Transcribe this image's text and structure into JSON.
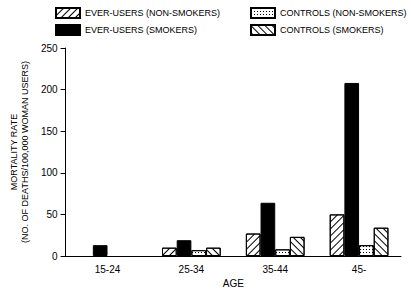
{
  "chart_data": {
    "type": "bar",
    "x_label": "AGE",
    "y_label": "MORTALITY RATE\n(NO. OF DEATHS/100,000 WOMAN USERS)",
    "categories": [
      "15-24",
      "25-34",
      "35-44",
      "45-"
    ],
    "series": [
      {
        "name": "EVER-USERS (NON-SMOKERS)",
        "color": "#ffffff",
        "marker": "hatch_right",
        "values": [
          null,
          10,
          27,
          50
        ]
      },
      {
        "name": "EVER-USERS (SMOKERS)",
        "color": "#000000",
        "marker": "solid",
        "values": [
          13,
          19,
          64,
          208
        ]
      },
      {
        "name": "CONTROLS (NON-SMOKERS)",
        "color": "#ffffff",
        "marker": "dotted",
        "values": [
          null,
          7,
          8,
          13
        ]
      },
      {
        "name": "CONTROLS (SMOKERS)",
        "color": "#ffffff",
        "marker": "hatch_left",
        "values": [
          null,
          10,
          23,
          34
        ]
      }
    ],
    "ylim": [
      0,
      250
    ],
    "yticks": [
      0,
      50,
      100,
      150,
      200,
      250
    ],
    "grid": false,
    "legend": "top"
  }
}
